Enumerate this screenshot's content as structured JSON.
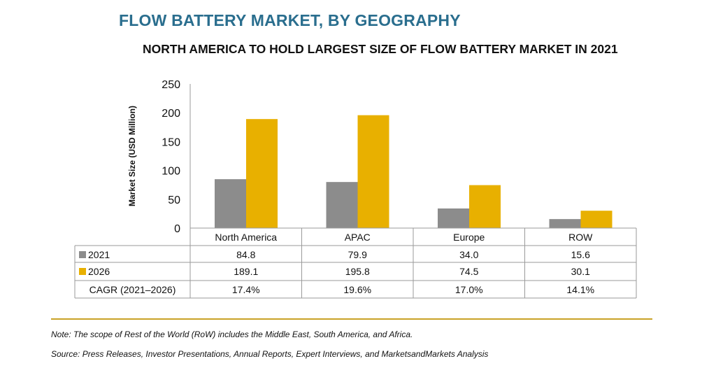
{
  "title": "FLOW BATTERY MARKET, BY GEOGRAPHY",
  "subtitle": "NORTH AMERICA TO HOLD LARGEST SIZE OF FLOW BATTERY MARKET IN 2021",
  "colors": {
    "title": "#2a6e8e",
    "s2021": "#8c8c8c",
    "s2026": "#e8b000",
    "rule": "#c9a227"
  },
  "chart_data": {
    "type": "bar",
    "title": "FLOW BATTERY MARKET, BY GEOGRAPHY",
    "ylabel": "Market Size (USD Million)",
    "xlabel": "",
    "ylim": [
      0,
      250
    ],
    "yticks": [
      0,
      50,
      100,
      150,
      200,
      250
    ],
    "grid": false,
    "categories": [
      "North America",
      "APAC",
      "Europe",
      "ROW"
    ],
    "series": [
      {
        "name": "2021",
        "values": [
          84.8,
          79.9,
          34.0,
          15.6
        ],
        "labels": [
          "84.8",
          "79.9",
          "34.0",
          "15.6"
        ]
      },
      {
        "name": "2026",
        "values": [
          189.1,
          195.8,
          74.5,
          30.1
        ],
        "labels": [
          "189.1",
          "195.8",
          "74.5",
          "30.1"
        ]
      }
    ],
    "table_rows": [
      {
        "label": "CAGR (2021–2026)",
        "values": [
          "17.4%",
          "19.6%",
          "17.0%",
          "14.1%"
        ]
      }
    ]
  },
  "note": "Note: The scope of Rest of the World (RoW) includes the Middle East, South America, and Africa.",
  "source": "Source: Press Releases, Investor Presentations, Annual Reports, Expert Interviews, and MarketsandMarkets Analysis"
}
